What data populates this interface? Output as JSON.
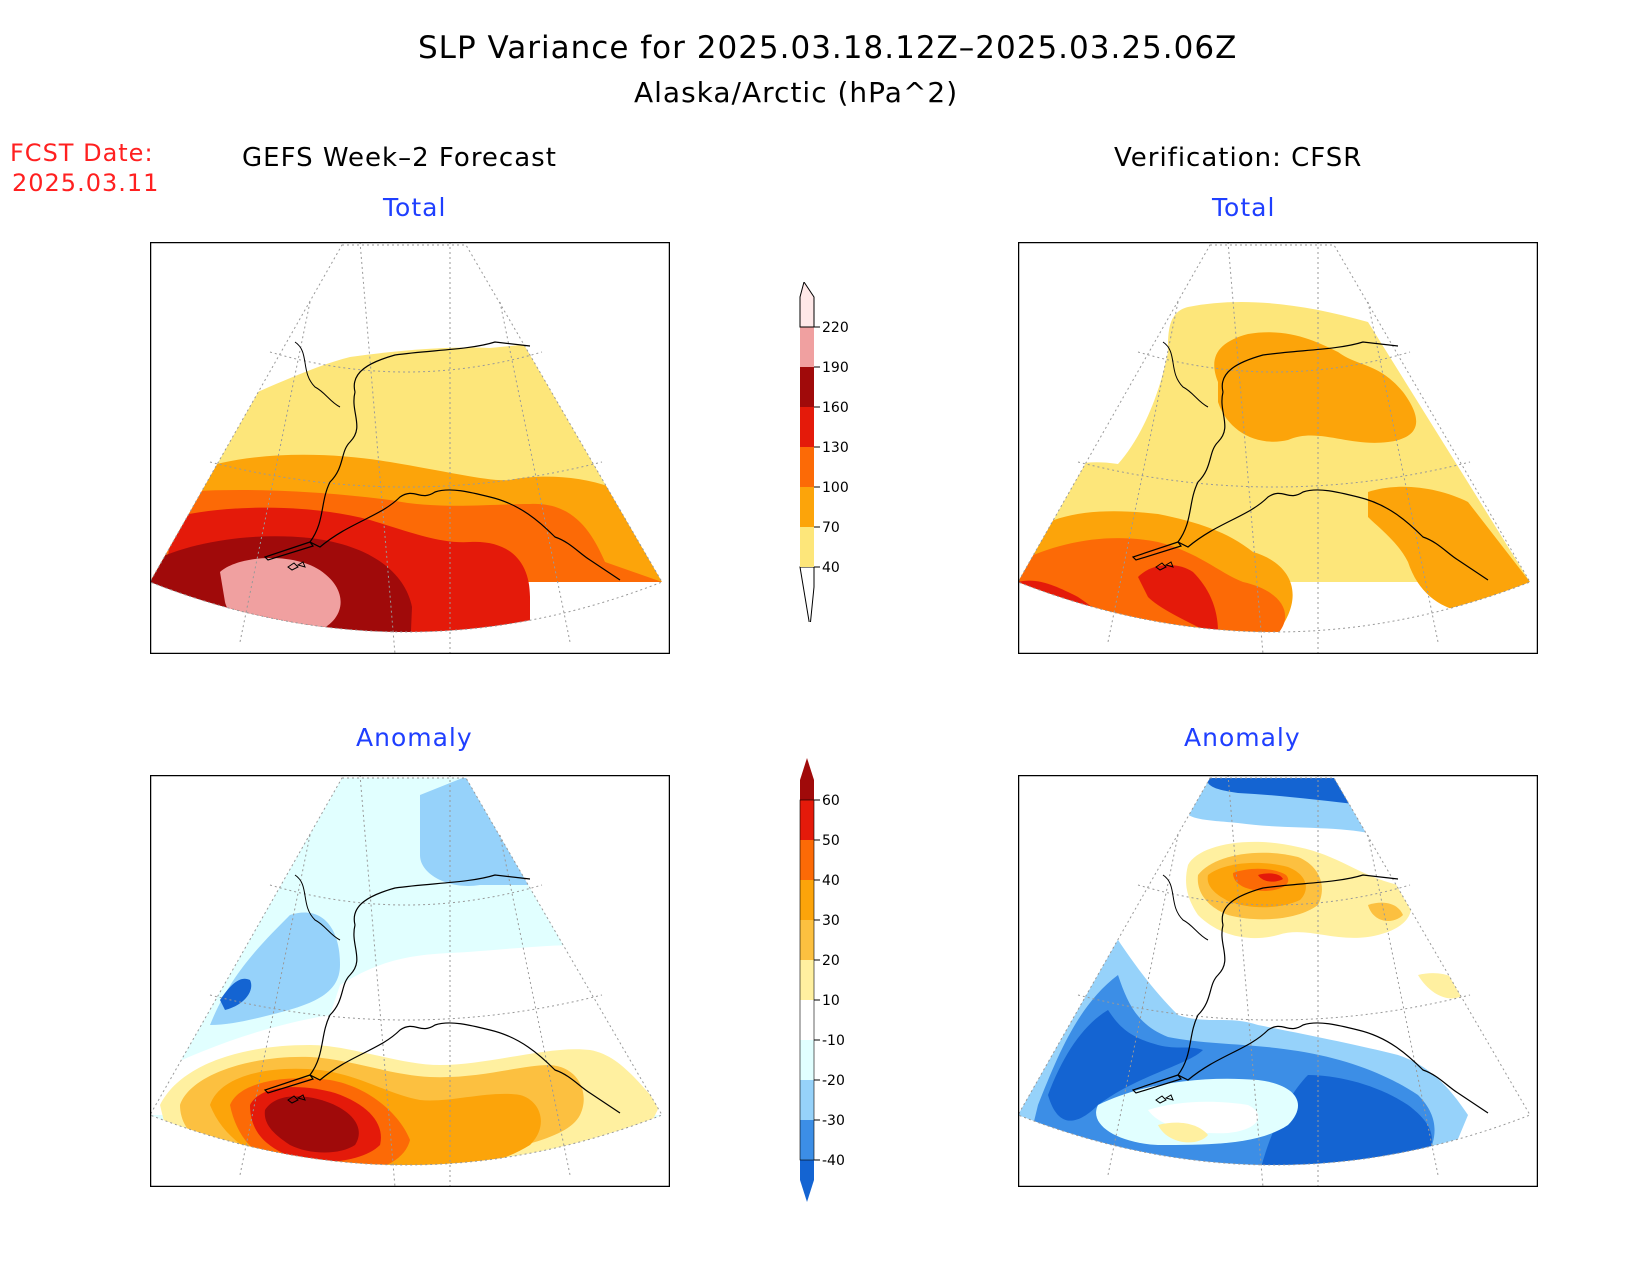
{
  "title": "SLP Variance for 2025.03.18.12Z–2025.03.25.06Z",
  "subtitle": "Alaska/Arctic (hPa^2)",
  "fcst_date": {
    "label": "FCST Date:",
    "value": "2025.03.11"
  },
  "columns": {
    "forecast": "GEFS Week–2 Forecast",
    "verification": "Verification: CFSR"
  },
  "panels": {
    "forecast_total": "Total",
    "forecast_anomaly": "Anomaly",
    "verification_total": "Total",
    "verification_anomaly": "Anomaly"
  },
  "colorbars": {
    "total": {
      "levels": [
        "40",
        "70",
        "100",
        "130",
        "160",
        "190",
        "220"
      ],
      "colors": [
        "#fde67a",
        "#fca40a",
        "#fc6a06",
        "#e41a0a",
        "#a00a0a",
        "#f0a0a0",
        "#ffe8e8"
      ]
    },
    "anomaly": {
      "levels": [
        "-40",
        "-30",
        "-20",
        "-10",
        "10",
        "20",
        "30",
        "40",
        "50",
        "60"
      ],
      "colors": [
        "#1464d2",
        "#3c8ee6",
        "#96d2fa",
        "#e1ffff",
        "#ffffff",
        "#fff0a0",
        "#fcc040",
        "#fca40a",
        "#fc6a06",
        "#e41a0a",
        "#a00a0a"
      ]
    }
  }
}
